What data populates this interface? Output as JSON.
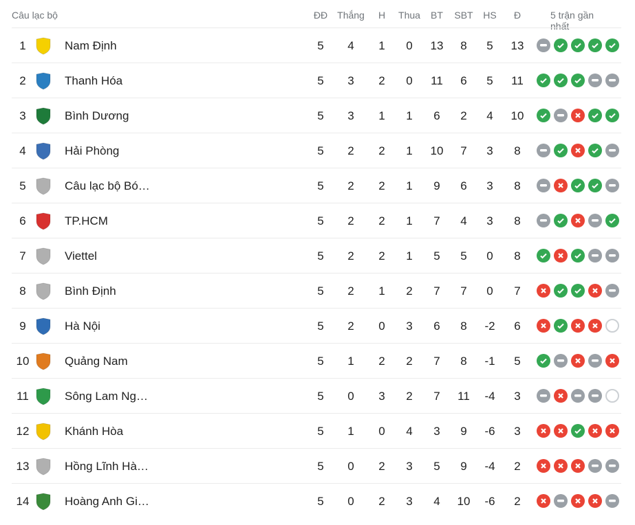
{
  "header": {
    "club": "Câu lạc bộ",
    "played": "ĐĐ",
    "won": "Thắng",
    "draw": "H",
    "lost": "Thua",
    "gf": "BT",
    "ga": "SBT",
    "gd": "HS",
    "pts": "Đ",
    "form": "5 trận gần nhất"
  },
  "colors": {
    "win": "#34a853",
    "loss": "#ea4335",
    "draw": "#9aa0a6"
  },
  "rows": [
    {
      "rank": "1",
      "name": "Nam Định",
      "logo": "#f5d000",
      "p": "5",
      "w": "4",
      "d": "1",
      "l": "0",
      "gf": "13",
      "ga": "8",
      "gd": "5",
      "pts": "13",
      "form": [
        "D",
        "W",
        "W",
        "W",
        "W"
      ]
    },
    {
      "rank": "2",
      "name": "Thanh Hóa",
      "logo": "#2a7fc1",
      "p": "5",
      "w": "3",
      "d": "2",
      "l": "0",
      "gf": "11",
      "ga": "6",
      "gd": "5",
      "pts": "11",
      "form": [
        "W",
        "W",
        "W",
        "D",
        "D"
      ]
    },
    {
      "rank": "3",
      "name": "Bình Dương",
      "logo": "#1e7b3a",
      "p": "5",
      "w": "3",
      "d": "1",
      "l": "1",
      "gf": "6",
      "ga": "2",
      "gd": "4",
      "pts": "10",
      "form": [
        "W",
        "D",
        "L",
        "W",
        "W"
      ]
    },
    {
      "rank": "4",
      "name": "Hải Phòng",
      "logo": "#3b6fb5",
      "p": "5",
      "w": "2",
      "d": "2",
      "l": "1",
      "gf": "10",
      "ga": "7",
      "gd": "3",
      "pts": "8",
      "form": [
        "D",
        "W",
        "L",
        "W",
        "D"
      ]
    },
    {
      "rank": "5",
      "name": "Câu lạc bộ Bó…",
      "logo": "#b0b0b0",
      "p": "5",
      "w": "2",
      "d": "2",
      "l": "1",
      "gf": "9",
      "ga": "6",
      "gd": "3",
      "pts": "8",
      "form": [
        "D",
        "L",
        "W",
        "W",
        "D"
      ]
    },
    {
      "rank": "6",
      "name": "TP.HCM",
      "logo": "#d8312f",
      "p": "5",
      "w": "2",
      "d": "2",
      "l": "1",
      "gf": "7",
      "ga": "4",
      "gd": "3",
      "pts": "8",
      "form": [
        "D",
        "W",
        "L",
        "D",
        "W"
      ]
    },
    {
      "rank": "7",
      "name": "Viettel",
      "logo": "#b0b0b0",
      "p": "5",
      "w": "2",
      "d": "2",
      "l": "1",
      "gf": "5",
      "ga": "5",
      "gd": "0",
      "pts": "8",
      "form": [
        "W",
        "L",
        "W",
        "D",
        "D"
      ]
    },
    {
      "rank": "8",
      "name": "Bình Định",
      "logo": "#b0b0b0",
      "p": "5",
      "w": "2",
      "d": "1",
      "l": "2",
      "gf": "7",
      "ga": "7",
      "gd": "0",
      "pts": "7",
      "form": [
        "L",
        "W",
        "W",
        "L",
        "D"
      ]
    },
    {
      "rank": "9",
      "name": "Hà Nội",
      "logo": "#2f6db5",
      "p": "5",
      "w": "2",
      "d": "0",
      "l": "3",
      "gf": "6",
      "ga": "8",
      "gd": "-2",
      "pts": "6",
      "form": [
        "L",
        "W",
        "L",
        "L",
        "N"
      ]
    },
    {
      "rank": "10",
      "name": "Quảng Nam",
      "logo": "#e07b1f",
      "p": "5",
      "w": "1",
      "d": "2",
      "l": "2",
      "gf": "7",
      "ga": "8",
      "gd": "-1",
      "pts": "5",
      "form": [
        "W",
        "D",
        "L",
        "D",
        "L"
      ]
    },
    {
      "rank": "11",
      "name": "Sông Lam Ng…",
      "logo": "#2e9a4a",
      "p": "5",
      "w": "0",
      "d": "3",
      "l": "2",
      "gf": "7",
      "ga": "11",
      "gd": "-4",
      "pts": "3",
      "form": [
        "D",
        "L",
        "D",
        "D",
        "N"
      ]
    },
    {
      "rank": "12",
      "name": "Khánh Hòa",
      "logo": "#f2c200",
      "p": "5",
      "w": "1",
      "d": "0",
      "l": "4",
      "gf": "3",
      "ga": "9",
      "gd": "-6",
      "pts": "3",
      "form": [
        "L",
        "L",
        "W",
        "L",
        "L"
      ]
    },
    {
      "rank": "13",
      "name": "Hồng Lĩnh Hà…",
      "logo": "#b0b0b0",
      "p": "5",
      "w": "0",
      "d": "2",
      "l": "3",
      "gf": "5",
      "ga": "9",
      "gd": "-4",
      "pts": "2",
      "form": [
        "L",
        "L",
        "L",
        "D",
        "D"
      ]
    },
    {
      "rank": "14",
      "name": "Hoàng Anh Gi…",
      "logo": "#3a8a3a",
      "p": "5",
      "w": "0",
      "d": "2",
      "l": "3",
      "gf": "4",
      "ga": "10",
      "gd": "-6",
      "pts": "2",
      "form": [
        "L",
        "D",
        "L",
        "L",
        "D"
      ]
    }
  ]
}
